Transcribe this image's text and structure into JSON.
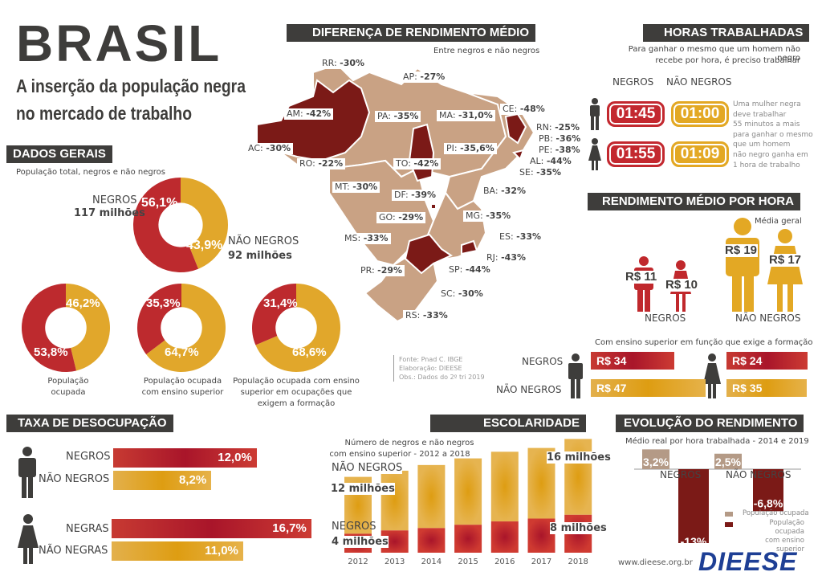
{
  "header": {
    "title": "BRASIL",
    "subtitle_line1": "A inserção da população negra",
    "subtitle_line2": "no mercado de trabalho"
  },
  "colors": {
    "negros": "#b8202b",
    "nao_negros": "#e1a72b",
    "dark_header": "#3e3d3b",
    "map_light": "#c9a284",
    "map_dark": "#7b1a17"
  },
  "dados_gerais": {
    "title": "DADOS GERAIS",
    "subtitle": "População total, negros e não negros",
    "main_donut": {
      "negros_label": "NEGROS",
      "negros_value": "117 milhões",
      "negros_pct": "56,1%",
      "negros_share": 56.1,
      "nao_negros_label": "NÃO NEGROS",
      "nao_negros_value": "92 milhões",
      "nao_negros_pct": "43,9%"
    },
    "small_donuts": [
      {
        "negros_pct": "53,8%",
        "negros_share": 53.8,
        "nao_negros_pct": "46,2%",
        "caption": "População ocupada"
      },
      {
        "negros_pct": "35,3%",
        "negros_share": 35.3,
        "nao_negros_pct": "64,7%",
        "caption": "População ocupada com ensino superior"
      },
      {
        "negros_pct": "31,4%",
        "negros_share": 31.4,
        "nao_negros_pct": "68,6%",
        "caption": "População ocupada com ensino superior em ocupações que exigem a formação"
      }
    ]
  },
  "mapa": {
    "title": "DIFERENÇA DE RENDIMENTO MÉDIO",
    "subtitle": "Entre negros e não negros",
    "states": [
      {
        "uf": "RR",
        "value": "-30%"
      },
      {
        "uf": "AP",
        "value": "-27%"
      },
      {
        "uf": "AM",
        "value": "-42%"
      },
      {
        "uf": "PA",
        "value": "-35%"
      },
      {
        "uf": "MA",
        "value": "-31,0%"
      },
      {
        "uf": "CE",
        "value": "-48%"
      },
      {
        "uf": "RN",
        "value": "-25%"
      },
      {
        "uf": "PB",
        "value": "-36%"
      },
      {
        "uf": "PE",
        "value": "-38%"
      },
      {
        "uf": "AL",
        "value": "-44%"
      },
      {
        "uf": "SE",
        "value": "-35%"
      },
      {
        "uf": "AC",
        "value": "-30%"
      },
      {
        "uf": "PI",
        "value": "-35,6%"
      },
      {
        "uf": "RO",
        "value": "-22%"
      },
      {
        "uf": "TO",
        "value": "-42%"
      },
      {
        "uf": "MT",
        "value": "-30%"
      },
      {
        "uf": "DF",
        "value": "-39%"
      },
      {
        "uf": "BA",
        "value": "-32%"
      },
      {
        "uf": "GO",
        "value": "-29%"
      },
      {
        "uf": "MG",
        "value": "-35%"
      },
      {
        "uf": "MS",
        "value": "-33%"
      },
      {
        "uf": "ES",
        "value": "-33%"
      },
      {
        "uf": "RJ",
        "value": "-43%"
      },
      {
        "uf": "SP",
        "value": "-44%"
      },
      {
        "uf": "PR",
        "value": "-29%"
      },
      {
        "uf": "SC",
        "value": "-30%"
      },
      {
        "uf": "RS",
        "value": "-33%"
      }
    ],
    "sources": [
      "Fonte: Pnad C. IBGE",
      "Elaboração: DIEESE",
      "Obs.: Dados do 2º tri 2019"
    ]
  },
  "horas": {
    "title": "HORAS TRABALHADAS",
    "subtitle_line1": "Para ganhar o mesmo que um homem não negro",
    "subtitle_line2": "recebe por hora, é preciso trabalhar",
    "col_negros": "NEGROS",
    "col_nao_negros": "NÃO NEGROS",
    "homem_negros": "01:45",
    "homem_nao_negros": "01:00",
    "mulher_negros": "01:55",
    "mulher_nao_negros": "01:09",
    "note": [
      "Uma mulher negra",
      "deve trabalhar",
      "55 minutos a mais",
      "para ganhar o mesmo",
      "que um homem",
      "não negro ganha em",
      "1 hora de trabalho"
    ]
  },
  "rendimento_hora": {
    "title": "RENDIMENTO MÉDIO POR HORA",
    "media_geral": "Média geral",
    "negros_homem": "R$ 11",
    "negros_mulher": "R$ 10",
    "nao_negros_homem": "R$ 19",
    "nao_negros_mulher": "R$ 17",
    "label_negros": "NEGROS",
    "label_nao_negros": "NÃO NEGROS",
    "superior_subtitle": "Com ensino superior em função que exige a formação",
    "superior_row_negros": "NEGROS",
    "superior_row_nao_negros": "NÃO NEGROS",
    "superior": {
      "homem_negros": {
        "label": "R$ 34",
        "value": 34
      },
      "homem_nao_negros": {
        "label": "R$ 47",
        "value": 47
      },
      "mulher_negros": {
        "label": "R$ 24",
        "value": 24
      },
      "mulher_nao_negros": {
        "label": "R$ 35",
        "value": 35
      }
    }
  },
  "desocupacao": {
    "title": "TAXA DE DESOCUPAÇÃO",
    "rows": [
      {
        "label": "NEGROS",
        "pct": "12,0%",
        "value": 12.0
      },
      {
        "label": "NÃO NEGROS",
        "pct": "8,2%",
        "value": 8.2
      },
      {
        "label": "NEGRAS",
        "pct": "16,7%",
        "value": 16.7
      },
      {
        "label": "NÃO NEGRAS",
        "pct": "11,0%",
        "value": 11.0
      }
    ]
  },
  "escolaridade": {
    "title": "ESCOLARIDADE",
    "subtitle_line1": "Número de negros e não negros",
    "subtitle_line2": "com ensino superior - 2012 a 2018",
    "label_nao_negros": "NÃO NEGROS",
    "label_negros": "NEGROS",
    "label_12": "12 milhões",
    "label_4": "4 milhões",
    "label_16": "16 milhões",
    "label_8": "8 milhões"
  },
  "evolucao": {
    "title": "EVOLUÇÃO DO RENDIMENTO",
    "subtitle": "Médio real por hora trabalhada - 2014 e 2019",
    "legend_ocupada": "População ocupada",
    "legend_superior_1": "População ocupada",
    "legend_superior_2": "com ensino superior",
    "site": "www.dieese.org.br",
    "logo": "DIEESE"
  },
  "chart_data": [
    {
      "type": "bar",
      "title": "ESCOLARIDADE",
      "subtitle": "Número de negros e não negros com ensino superior - 2012 a 2018",
      "categories": [
        "2012",
        "2013",
        "2014",
        "2015",
        "2016",
        "2017",
        "2018"
      ],
      "series": [
        {
          "name": "NEGROS",
          "values": [
            4,
            4.7,
            5.2,
            5.9,
            6.6,
            7.2,
            8
          ]
        },
        {
          "name": "NÃO NEGROS",
          "values": [
            12,
            12.6,
            13.3,
            14,
            14.7,
            14.9,
            16
          ]
        }
      ],
      "stacked": true,
      "ylabel": "milhões",
      "ylim": [
        0,
        25
      ]
    },
    {
      "type": "bar",
      "title": "EVOLUÇÃO DO RENDIMENTO",
      "subtitle": "Médio real por hora trabalhada - 2014 e 2019",
      "categories": [
        "NEGROS",
        "NÃO NEGROS"
      ],
      "series": [
        {
          "name": "População ocupada",
          "values": [
            3.2,
            2.5
          ],
          "labels": [
            "3,2%",
            "2,5%"
          ]
        },
        {
          "name": "População ocupada com ensino superior",
          "values": [
            -13,
            -6.8
          ],
          "labels": [
            "-13%",
            "-6,8%"
          ]
        }
      ],
      "ylim": [
        -14,
        4
      ]
    }
  ]
}
